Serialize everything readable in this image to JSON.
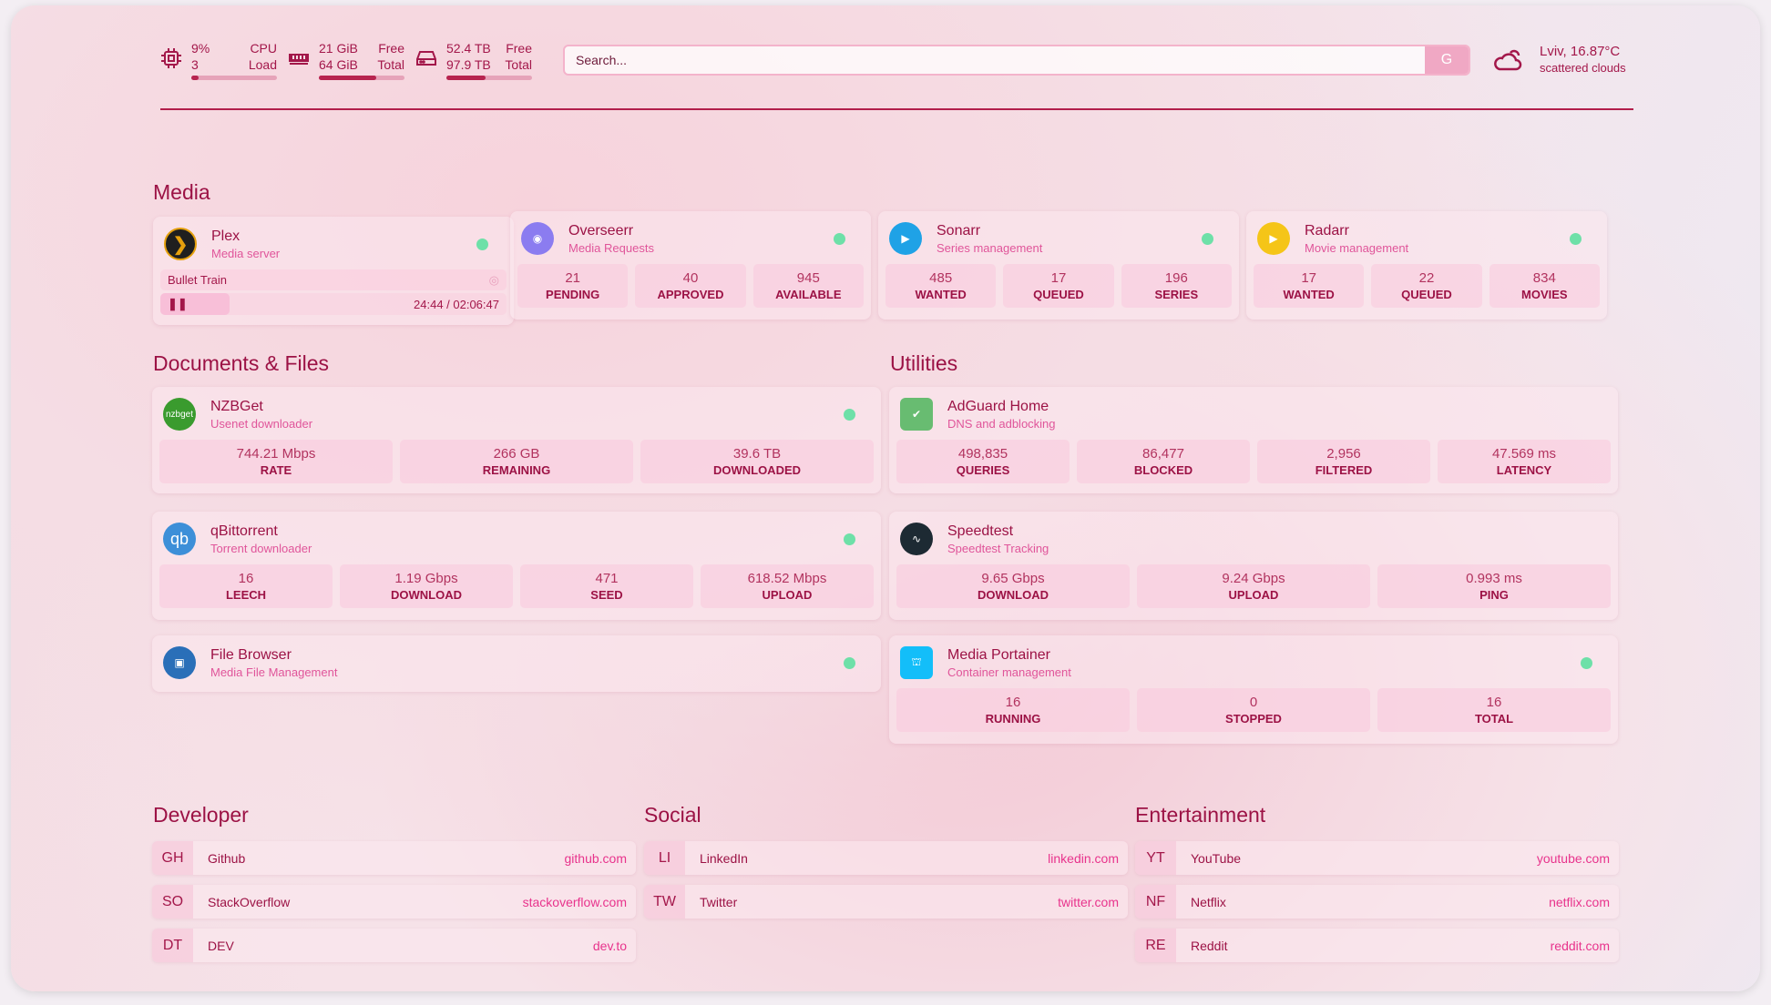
{
  "header": {
    "cpu": {
      "value": "9%",
      "label": "CPU",
      "sub_value": "3",
      "sub_label": "Load",
      "percent": 9
    },
    "memory": {
      "value": "21 GiB",
      "label": "Free",
      "sub_value": "64 GiB",
      "sub_label": "Total",
      "percent": 67
    },
    "disk": {
      "value": "52.4 TB",
      "label": "Free",
      "sub_value": "97.9 TB",
      "sub_label": "Total",
      "percent": 46
    },
    "search": {
      "placeholder": "Search...",
      "provider_label": "G"
    },
    "weather": {
      "location_temp": "Lviv, 16.87°C",
      "condition": "scattered clouds"
    }
  },
  "colors": {
    "accent": "#a3174a",
    "subtitle": "#e0559a",
    "status_ok": "#6ee0a8",
    "link": "#e8338c"
  },
  "sections": {
    "media": "Media",
    "documents": "Documents & Files",
    "utilities": "Utilities",
    "developer": "Developer",
    "social": "Social",
    "entertainment": "Entertainment"
  },
  "plex": {
    "name": "Plex",
    "description": "Media server",
    "now_playing": "Bullet Train",
    "time": "24:44 / 02:06:47",
    "progress_percent": 20
  },
  "cards": [
    {
      "id": "overseerr",
      "name": "Overseerr",
      "description": "Media Requests",
      "icon": "eye-icon",
      "color": "#8b7cf0",
      "stats": [
        {
          "v": "21",
          "k": "PENDING"
        },
        {
          "v": "40",
          "k": "APPROVED"
        },
        {
          "v": "945",
          "k": "AVAILABLE"
        }
      ]
    },
    {
      "id": "sonarr",
      "name": "Sonarr",
      "description": "Series management",
      "icon": "play-icon",
      "color": "#1fa2e6",
      "stats": [
        {
          "v": "485",
          "k": "WANTED"
        },
        {
          "v": "17",
          "k": "QUEUED"
        },
        {
          "v": "196",
          "k": "SERIES"
        }
      ]
    },
    {
      "id": "radarr",
      "name": "Radarr",
      "description": "Movie management",
      "icon": "play-icon",
      "color": "#f5c518",
      "stats": [
        {
          "v": "17",
          "k": "WANTED"
        },
        {
          "v": "22",
          "k": "QUEUED"
        },
        {
          "v": "834",
          "k": "MOVIES"
        }
      ]
    },
    {
      "id": "nzbget",
      "name": "NZBGet",
      "description": "Usenet downloader",
      "icon": "nzbget-logo",
      "logo_text": "nzbget",
      "color": "#3a9b2e",
      "stats": [
        {
          "v": "744.21 Mbps",
          "k": "RATE"
        },
        {
          "v": "266 GB",
          "k": "REMAINING"
        },
        {
          "v": "39.6 TB",
          "k": "DOWNLOADED"
        }
      ]
    },
    {
      "id": "qbittorrent",
      "name": "qBittorrent",
      "description": "Torrent downloader",
      "icon": "qbittorrent-logo",
      "logo_text": "qb",
      "color": "#3d8fd8",
      "stats": [
        {
          "v": "16",
          "k": "LEECH"
        },
        {
          "v": "1.19 Gbps",
          "k": "DOWNLOAD"
        },
        {
          "v": "471",
          "k": "SEED"
        },
        {
          "v": "618.52 Mbps",
          "k": "UPLOAD"
        }
      ]
    },
    {
      "id": "filebrowser",
      "name": "File Browser",
      "description": "Media File Management",
      "icon": "floppy-icon",
      "color": "#2a6fb8",
      "stats": []
    },
    {
      "id": "adguard",
      "name": "AdGuard Home",
      "description": "DNS and adblocking",
      "icon": "shield-check-icon",
      "color": "#68bc71",
      "nodot": true,
      "stats": [
        {
          "v": "498,835",
          "k": "QUERIES"
        },
        {
          "v": "86,477",
          "k": "BLOCKED"
        },
        {
          "v": "2,956",
          "k": "FILTERED"
        },
        {
          "v": "47.569 ms",
          "k": "LATENCY"
        }
      ]
    },
    {
      "id": "speedtest",
      "name": "Speedtest",
      "description": "Speedtest Tracking",
      "icon": "pulse-icon",
      "color": "#1d2a33",
      "nodot": true,
      "stats": [
        {
          "v": "9.65 Gbps",
          "k": "DOWNLOAD"
        },
        {
          "v": "9.24 Gbps",
          "k": "UPLOAD"
        },
        {
          "v": "0.993 ms",
          "k": "PING"
        }
      ]
    },
    {
      "id": "portainer",
      "name": "Media Portainer",
      "description": "Container management",
      "icon": "crane-icon",
      "color": "#13bef9",
      "stats": [
        {
          "v": "16",
          "k": "RUNNING"
        },
        {
          "v": "0",
          "k": "STOPPED"
        },
        {
          "v": "16",
          "k": "TOTAL"
        }
      ]
    }
  ],
  "bookmarks": {
    "developer": [
      {
        "abbr": "GH",
        "name": "Github",
        "href": "github.com"
      },
      {
        "abbr": "SO",
        "name": "StackOverflow",
        "href": "stackoverflow.com"
      },
      {
        "abbr": "DT",
        "name": "DEV",
        "href": "dev.to"
      }
    ],
    "social": [
      {
        "abbr": "LI",
        "name": "LinkedIn",
        "href": "linkedin.com"
      },
      {
        "abbr": "TW",
        "name": "Twitter",
        "href": "twitter.com"
      }
    ],
    "entertainment": [
      {
        "abbr": "YT",
        "name": "YouTube",
        "href": "youtube.com"
      },
      {
        "abbr": "NF",
        "name": "Netflix",
        "href": "netflix.com"
      },
      {
        "abbr": "RE",
        "name": "Reddit",
        "href": "reddit.com"
      }
    ]
  }
}
